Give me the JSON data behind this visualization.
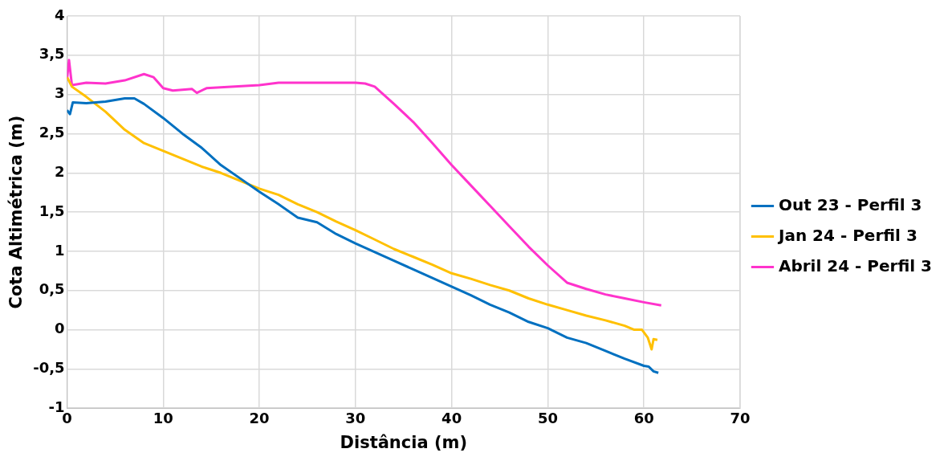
{
  "chart_data": {
    "type": "line",
    "xlabel": "Distância (m)",
    "ylabel": "Cota Altimétrica (m)",
    "xlim": [
      0,
      70
    ],
    "xticks": [
      0,
      10,
      20,
      30,
      40,
      50,
      60,
      70
    ],
    "ylim": [
      -1,
      4
    ],
    "yticks": [
      -1,
      {
        "value": -0.5,
        "label": "-0,5"
      },
      0,
      {
        "value": 0.5,
        "label": "0,5"
      },
      1,
      {
        "value": 1.5,
        "label": "1,5"
      },
      2,
      {
        "value": 2.5,
        "label": "2,5"
      },
      3,
      {
        "value": 3.5,
        "label": "3,5"
      },
      4
    ],
    "grid": true,
    "legend": "right",
    "marker": "none",
    "line_style": "solid",
    "series": [
      {
        "name": "Out 23 - Perfil 3",
        "color": "#0070c0",
        "x": [
          0,
          0.3,
          0.6,
          2,
          4,
          6,
          7,
          8,
          10,
          12,
          14,
          16,
          18,
          20,
          22,
          24,
          26,
          28,
          30,
          32,
          34,
          36,
          38,
          40,
          42,
          44,
          46,
          48,
          50,
          52,
          54,
          56,
          58,
          60,
          60.5,
          61,
          61.5
        ],
        "values": [
          2.8,
          2.75,
          2.9,
          2.89,
          2.91,
          2.95,
          2.95,
          2.88,
          2.7,
          2.5,
          2.32,
          2.1,
          1.93,
          1.76,
          1.6,
          1.43,
          1.37,
          1.22,
          1.1,
          0.99,
          0.88,
          0.77,
          0.66,
          0.55,
          0.44,
          0.32,
          0.22,
          0.1,
          0.02,
          -0.1,
          -0.17,
          -0.27,
          -0.37,
          -0.46,
          -0.47,
          -0.53,
          -0.55
        ]
      },
      {
        "name": "Jan 24 - Perfil 3",
        "color": "#ffc000",
        "x": [
          0,
          0.5,
          2,
          4,
          6,
          8,
          10,
          12,
          14,
          16,
          18,
          20,
          22,
          24,
          26,
          28,
          30,
          32,
          34,
          36,
          38,
          40,
          42,
          44,
          46,
          48,
          50,
          52,
          54,
          56,
          58,
          59,
          59.8,
          60.4,
          60.8,
          61,
          61.4
        ],
        "values": [
          3.22,
          3.1,
          2.97,
          2.78,
          2.55,
          2.38,
          2.28,
          2.18,
          2.08,
          2.0,
          1.9,
          1.8,
          1.72,
          1.6,
          1.5,
          1.38,
          1.27,
          1.15,
          1.03,
          0.93,
          0.83,
          0.72,
          0.65,
          0.57,
          0.5,
          0.4,
          0.32,
          0.25,
          0.18,
          0.12,
          0.05,
          0,
          0,
          -0.1,
          -0.25,
          -0.12,
          -0.13
        ]
      },
      {
        "name": "Abril 24 - Perfil 3",
        "color": "#ff33cc",
        "x": [
          0,
          0.2,
          0.5,
          2,
          4,
          6,
          8,
          9,
          10,
          11,
          13,
          13.5,
          14.5,
          20,
          22,
          26,
          30,
          31,
          32,
          34,
          36,
          38,
          40,
          42,
          44,
          46,
          48,
          50,
          52,
          54,
          56,
          58,
          60,
          61.8
        ],
        "values": [
          3.2,
          3.44,
          3.12,
          3.15,
          3.14,
          3.18,
          3.26,
          3.22,
          3.08,
          3.05,
          3.07,
          3.02,
          3.08,
          3.12,
          3.15,
          3.15,
          3.15,
          3.14,
          3.1,
          2.88,
          2.65,
          2.38,
          2.1,
          1.84,
          1.58,
          1.32,
          1.06,
          0.82,
          0.6,
          0.52,
          0.45,
          0.4,
          0.35,
          0.31
        ]
      }
    ]
  }
}
